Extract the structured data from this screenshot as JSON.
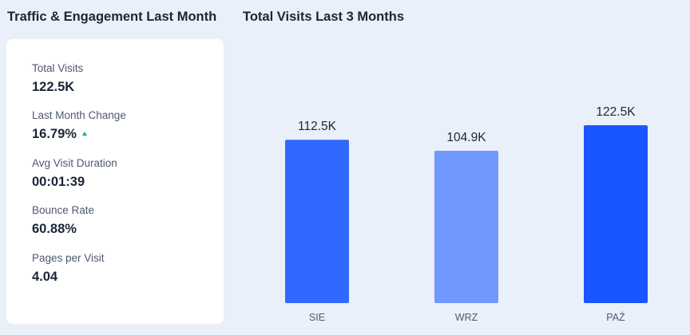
{
  "left_panel": {
    "title": "Traffic & Engagement Last Month",
    "metrics": [
      {
        "label": "Total Visits",
        "value": "122.5K"
      },
      {
        "label": "Last Month Change",
        "value": "16.79%",
        "trend": "up",
        "trend_color": "#17b26a"
      },
      {
        "label": "Avg Visit Duration",
        "value": "00:01:39"
      },
      {
        "label": "Bounce Rate",
        "value": "60.88%"
      },
      {
        "label": "Pages per Visit",
        "value": "4.04"
      }
    ]
  },
  "chart_panel": {
    "title": "Total Visits Last 3 Months"
  },
  "chart_data": {
    "type": "bar",
    "title": "Total Visits Last 3 Months",
    "categories": [
      "SIE",
      "WRZ",
      "PAŹ"
    ],
    "values": [
      112.5,
      104.9,
      122.5
    ],
    "value_labels": [
      "112.5K",
      "104.9K",
      "122.5K"
    ],
    "value_unit": "K",
    "bar_colors": [
      "#2f69ff",
      "#7098ff",
      "#1a56ff"
    ],
    "ylim": [
      0,
      122.5
    ],
    "grid": false,
    "legend": "none"
  }
}
